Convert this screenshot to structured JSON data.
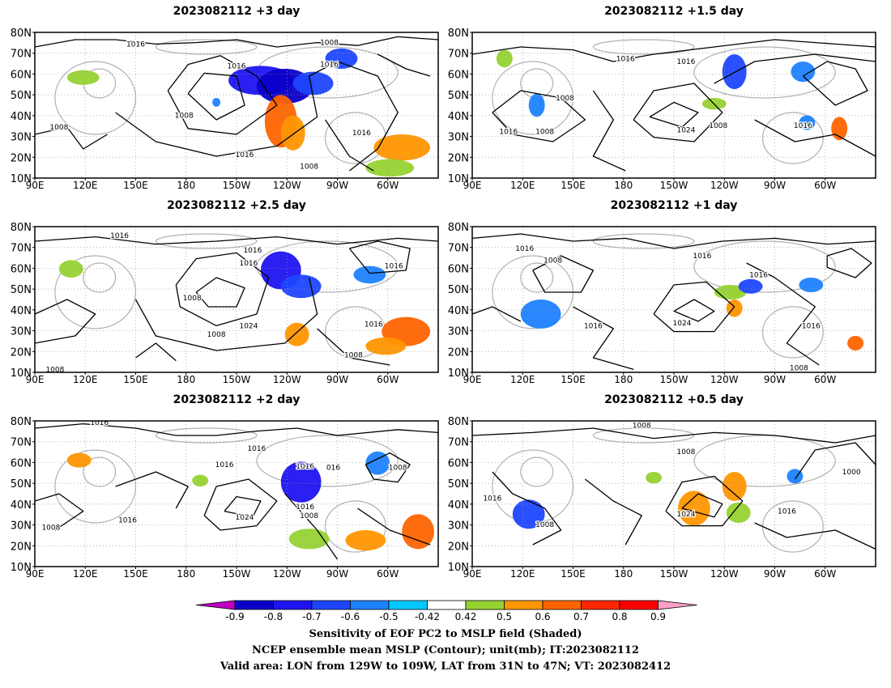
{
  "panels": [
    {
      "title": "2023082112 +3 day",
      "contour_labels": [
        "1016",
        "1016",
        "1016",
        "1008",
        "1016",
        "1008",
        "1016",
        "1008",
        "1008"
      ]
    },
    {
      "title": "2023082112 +1.5 day",
      "contour_labels": [
        "1016",
        "1016",
        "1008",
        "1008",
        "1016",
        "1024",
        "1008",
        "1016"
      ]
    },
    {
      "title": "2023082112 +2.5 day",
      "contour_labels": [
        "1016",
        "1016",
        "1016",
        "1016",
        "1008",
        "1024",
        "1008",
        "1016",
        "1008",
        "1008"
      ]
    },
    {
      "title": "2023082112 +1 day",
      "contour_labels": [
        "1016",
        "1008",
        "1016",
        "1016",
        "1016",
        "1024",
        "1016",
        "1008"
      ]
    },
    {
      "title": "2023082112 +2 day",
      "contour_labels": [
        "1016",
        "1016",
        "1016",
        "1016",
        "016",
        "1008",
        "1016",
        "1024",
        "1016",
        "1008",
        "1008"
      ]
    },
    {
      "title": "2023082112 +0.5 day",
      "contour_labels": [
        "1008",
        "1016",
        "1008",
        "1024",
        "1008",
        "1016",
        "1000"
      ]
    }
  ],
  "axes": {
    "lat_labels": [
      "80N",
      "70N",
      "60N",
      "50N",
      "40N",
      "30N",
      "20N",
      "10N"
    ],
    "lon_labels": [
      "90E",
      "120E",
      "150E",
      "180",
      "150W",
      "120W",
      "90W",
      "60W"
    ]
  },
  "colorbar": {
    "labels": [
      "-0.9",
      "-0.8",
      "-0.7",
      "-0.6",
      "-0.5",
      "-0.42",
      "0.42",
      "0.5",
      "0.6",
      "0.7",
      "0.8",
      "0.9"
    ],
    "colors": [
      "#c000c0",
      "#0a00c8",
      "#1e14f0",
      "#1e46ff",
      "#1e82ff",
      "#00c8ff",
      "#ffffff",
      "#96d232",
      "#ff9600",
      "#ff6400",
      "#ff2800",
      "#ff0000",
      "#ffa0c8"
    ]
  },
  "footer": {
    "line1": "Sensitivity of EOF PC2 to MSLP field (Shaded)",
    "line2": "NCEP ensemble mean MSLP (Contour); unit(mb); IT:2023082112",
    "line3": "Valid area: LON from 129W to 109W, LAT from 31N to 47N; VT: 2023082412"
  }
}
